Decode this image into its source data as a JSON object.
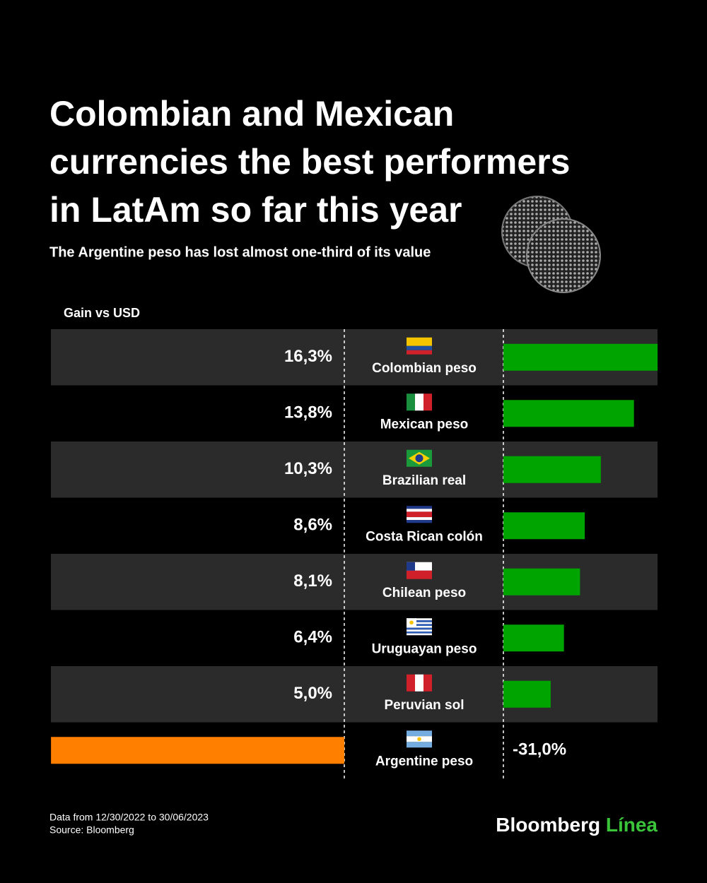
{
  "chart_data": {
    "type": "bar",
    "title": [
      "Colombian and Mexican",
      "currencies the best performers",
      "in LatAm so far this year"
    ],
    "subtitle": "The Argentine peso has lost almost one-third of its value",
    "axis_label": "Gain vs USD",
    "categories": [
      "Colombian peso",
      "Mexican peso",
      "Brazilian real",
      "Costa Rican colón",
      "Chilean peso",
      "Uruguayan peso",
      "Peruvian sol",
      "Argentine peso"
    ],
    "values": [
      16.3,
      13.8,
      10.3,
      8.6,
      8.1,
      6.4,
      5.0,
      -31.0
    ],
    "value_labels": [
      "16,3%",
      "13,8%",
      "10,3%",
      "8,6%",
      "8,1%",
      "6,4%",
      "5,0%",
      "-31,0%"
    ],
    "positive_color": "#00a400",
    "negative_color": "#ff7f00",
    "xlim": [
      -31.0,
      16.3
    ],
    "notes": [
      "Data from 12/30/2022 to 30/06/2023",
      "Source: Bloomberg"
    ],
    "brand": [
      "Bloomberg",
      "Línea"
    ]
  }
}
